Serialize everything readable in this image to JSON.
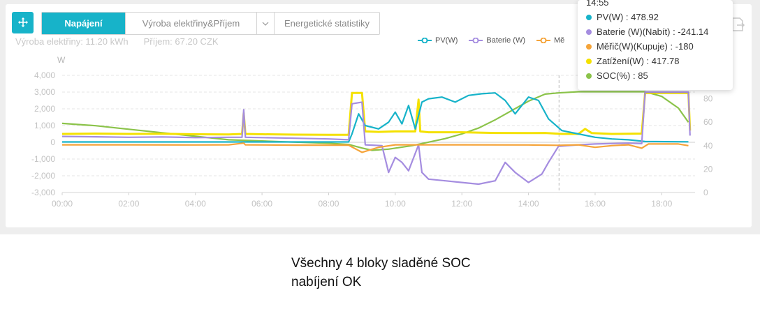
{
  "toolbar": {
    "move_icon": "move-arrows-icon",
    "tabs": [
      {
        "label": "Napájení",
        "active": true
      },
      {
        "label": "Výroba elektřiny&Příjem",
        "active": false
      },
      {
        "label": "Energetické statistiky",
        "active": false
      }
    ],
    "export_icon": "export-icon"
  },
  "summary": {
    "production": "Výroba elektřiny:  11.20 kWh",
    "income": "Příjem:  67.20 CZK"
  },
  "tooltip": {
    "time": "14:55",
    "rows": [
      {
        "text": "PV(W) : 478.92",
        "color": "#17b3c9"
      },
      {
        "text": "Baterie (W)(Nabít) : -241.14",
        "color": "#a58de0"
      },
      {
        "text": "Měřič(W)(Kupuje) : -180",
        "color": "#f5a43a"
      },
      {
        "text": "Zatížení(W) : 417.78",
        "color": "#f4e100"
      },
      {
        "text": "SOC(%) : 85",
        "color": "#8bc34a"
      }
    ]
  },
  "note": {
    "line1": "Všechny 4 bloky sladěné SOC",
    "line2": "nabíjení OK"
  },
  "chart_data": {
    "type": "line",
    "ylabel": "W",
    "ylim": [
      -3000,
      4000
    ],
    "y_ticks": [
      "4,000",
      "3,000",
      "2,000",
      "1,000",
      "0",
      "-1,000",
      "-2,000",
      "-3,000"
    ],
    "y2lim": [
      0,
      100
    ],
    "y2_ticks": [
      "80",
      "60",
      "40",
      "20",
      "0"
    ],
    "x_ticks": [
      "00:00",
      "02:00",
      "04:00",
      "06:00",
      "08:00",
      "10:00",
      "12:00",
      "14:00",
      "16:00",
      "18:00"
    ],
    "xlim_hours": [
      0,
      19
    ],
    "cursor_time": "14:55",
    "legend": [
      {
        "name": "PV(W)",
        "color": "#17b3c9"
      },
      {
        "name": "Baterie (W)",
        "color": "#a58de0"
      },
      {
        "name": "Mě",
        "color": "#f5a43a"
      }
    ],
    "series": [
      {
        "key": "soc",
        "color": "#8bc34a",
        "axis": "right",
        "points": [
          [
            0,
            59
          ],
          [
            1,
            57
          ],
          [
            2,
            54
          ],
          [
            3,
            51
          ],
          [
            4,
            48
          ],
          [
            5,
            45
          ],
          [
            6,
            44
          ],
          [
            7,
            43
          ],
          [
            8,
            42
          ],
          [
            8.6,
            41
          ],
          [
            9.0,
            38
          ],
          [
            9.3,
            36
          ],
          [
            9.8,
            37
          ],
          [
            10.5,
            40
          ],
          [
            11,
            43
          ],
          [
            11.5,
            46
          ],
          [
            12,
            50
          ],
          [
            12.5,
            55
          ],
          [
            13,
            62
          ],
          [
            13.5,
            70
          ],
          [
            14,
            78
          ],
          [
            14.5,
            84
          ],
          [
            14.9,
            85
          ],
          [
            15.5,
            86
          ],
          [
            16,
            86
          ],
          [
            17,
            86
          ],
          [
            17.5,
            86
          ],
          [
            18,
            82
          ],
          [
            18.5,
            72
          ],
          [
            18.8,
            60
          ]
        ]
      },
      {
        "key": "load",
        "color": "#f4e100",
        "axis": "left",
        "points": [
          [
            0,
            500
          ],
          [
            1,
            520
          ],
          [
            2,
            500
          ],
          [
            3,
            510
          ],
          [
            4,
            480
          ],
          [
            5,
            470
          ],
          [
            5.4,
            500
          ],
          [
            5.45,
            1750
          ],
          [
            5.5,
            500
          ],
          [
            6,
            480
          ],
          [
            7,
            460
          ],
          [
            8,
            450
          ],
          [
            8.6,
            450
          ],
          [
            8.7,
            2950
          ],
          [
            9.0,
            2950
          ],
          [
            9.1,
            650
          ],
          [
            9.5,
            620
          ],
          [
            10,
            650
          ],
          [
            10.6,
            650
          ],
          [
            10.7,
            2550
          ],
          [
            10.75,
            650
          ],
          [
            11,
            600
          ],
          [
            12,
            600
          ],
          [
            13,
            560
          ],
          [
            14,
            550
          ],
          [
            14.5,
            560
          ],
          [
            15,
            500
          ],
          [
            15.5,
            500
          ],
          [
            15.7,
            800
          ],
          [
            15.9,
            550
          ],
          [
            16.5,
            500
          ],
          [
            17.4,
            520
          ],
          [
            17.5,
            2950
          ],
          [
            18.5,
            2950
          ],
          [
            18.8,
            2950
          ],
          [
            18.85,
            700
          ]
        ]
      },
      {
        "key": "pv",
        "color": "#17b3c9",
        "axis": "left",
        "points": [
          [
            0,
            20
          ],
          [
            8.6,
            20
          ],
          [
            8.7,
            500
          ],
          [
            8.9,
            1700
          ],
          [
            9.1,
            1000
          ],
          [
            9.5,
            800
          ],
          [
            9.8,
            1200
          ],
          [
            10.0,
            1800
          ],
          [
            10.2,
            1100
          ],
          [
            10.4,
            2200
          ],
          [
            10.6,
            800
          ],
          [
            10.8,
            2400
          ],
          [
            11.0,
            2600
          ],
          [
            11.4,
            2700
          ],
          [
            11.8,
            2400
          ],
          [
            12.2,
            2800
          ],
          [
            12.6,
            2900
          ],
          [
            13.0,
            2950
          ],
          [
            13.3,
            2500
          ],
          [
            13.6,
            1700
          ],
          [
            14.0,
            2700
          ],
          [
            14.3,
            2500
          ],
          [
            14.6,
            1400
          ],
          [
            15.0,
            700
          ],
          [
            15.5,
            500
          ],
          [
            16,
            300
          ],
          [
            16.5,
            200
          ],
          [
            17,
            150
          ],
          [
            17.5,
            50
          ],
          [
            18.8,
            30
          ]
        ]
      },
      {
        "key": "battery",
        "color": "#a58de0",
        "axis": "left",
        "points": [
          [
            0,
            350
          ],
          [
            1,
            330
          ],
          [
            2,
            300
          ],
          [
            3,
            320
          ],
          [
            4,
            280
          ],
          [
            5,
            300
          ],
          [
            5.4,
            300
          ],
          [
            5.45,
            1950
          ],
          [
            5.5,
            300
          ],
          [
            6,
            280
          ],
          [
            7,
            240
          ],
          [
            8,
            200
          ],
          [
            8.6,
            150
          ],
          [
            8.7,
            2300
          ],
          [
            9.0,
            2400
          ],
          [
            9.1,
            -150
          ],
          [
            9.6,
            -200
          ],
          [
            9.8,
            -1800
          ],
          [
            10.0,
            -900
          ],
          [
            10.2,
            -1200
          ],
          [
            10.4,
            -1700
          ],
          [
            10.7,
            -150
          ],
          [
            10.8,
            -1800
          ],
          [
            11.0,
            -2200
          ],
          [
            11.5,
            -2300
          ],
          [
            12,
            -2400
          ],
          [
            12.5,
            -2500
          ],
          [
            13,
            -2300
          ],
          [
            13.3,
            -1200
          ],
          [
            13.6,
            -1800
          ],
          [
            14,
            -2400
          ],
          [
            14.4,
            -1900
          ],
          [
            14.6,
            -1200
          ],
          [
            14.9,
            -241
          ],
          [
            15.5,
            -150
          ],
          [
            16,
            -100
          ],
          [
            17,
            -50
          ],
          [
            17.4,
            -80
          ],
          [
            17.5,
            3000
          ],
          [
            18.5,
            3000
          ],
          [
            18.8,
            3000
          ],
          [
            18.85,
            400
          ]
        ]
      },
      {
        "key": "meter",
        "color": "#f5a43a",
        "axis": "left",
        "points": [
          [
            0,
            -150
          ],
          [
            2,
            -150
          ],
          [
            4,
            -160
          ],
          [
            5,
            -150
          ],
          [
            5.45,
            -50
          ],
          [
            5.5,
            -150
          ],
          [
            7,
            -170
          ],
          [
            8.6,
            -170
          ],
          [
            9.0,
            -600
          ],
          [
            9.5,
            -300
          ],
          [
            10,
            -150
          ],
          [
            12,
            -150
          ],
          [
            14,
            -160
          ],
          [
            14.9,
            -180
          ],
          [
            15.5,
            -150
          ],
          [
            16,
            -300
          ],
          [
            16.5,
            -200
          ],
          [
            17,
            -150
          ],
          [
            17.4,
            -350
          ],
          [
            17.6,
            -100
          ],
          [
            18.5,
            -100
          ],
          [
            18.8,
            -200
          ]
        ]
      }
    ]
  }
}
